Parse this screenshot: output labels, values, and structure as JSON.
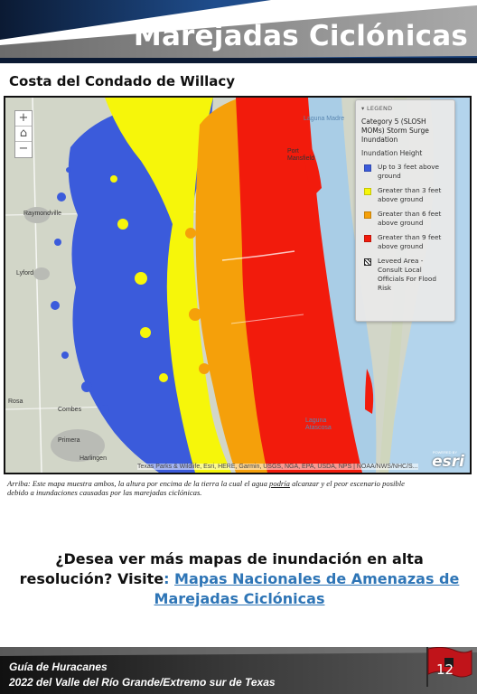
{
  "header": {
    "title": "Marejadas Ciclónicas"
  },
  "subtitle": "Costa del Condado de Willacy",
  "map": {
    "zoom_in": "+",
    "zoom_home": "⌂",
    "zoom_out": "−",
    "place_labels": [
      "Raymondville",
      "Lyford",
      "Rosa",
      "Combes",
      "Primera",
      "Harlingen",
      "Port Mansfield",
      "Laguna Madre",
      "Laguna Atascosa"
    ],
    "legend": {
      "header": "LEGEND",
      "layer_title": "Category 5 (SLOSH MOMs) Storm Surge Inundation",
      "field": "Inundation Height",
      "items": [
        {
          "label": "Up to 3 feet above ground",
          "color": "#3b5bdb"
        },
        {
          "label": "Greater than 3 feet above ground",
          "color": "#f6f60a"
        },
        {
          "label": "Greater than 6 feet above ground",
          "color": "#f5a00a"
        },
        {
          "label": "Greater than 9 feet above ground",
          "color": "#f21b0c"
        },
        {
          "label": "Leveed Area - Consult Local Officials For Flood Risk",
          "color": "hatch"
        }
      ]
    },
    "attribution": "Texas Parks & Wildlife, Esri, HERE, Garmin, USGS, NGA, EPA, USDA, NPS | NOAA/NWS/NHC/S...",
    "esri": "esri",
    "esri_powered": "POWERED BY"
  },
  "caption": {
    "before": "Arriba: Este mapa muestra ambos, la altura por encima de la tierra la cual el agua ",
    "emphasis": "podría",
    "after": " alcanzar y el peor escenario posible debido a inundaciones causadas por las marejadas ciclónicas."
  },
  "cta": {
    "question": "¿Desea ver más mapas de inundación en alta resolución? Visite",
    "colon": ": ",
    "link": "Mapas Nacionales de Amenazas de Marejadas Ciclónicas"
  },
  "footer": {
    "line1": "Guía de Huracanes",
    "line2": "2022 del Valle del Río Grande/Extremo sur de Texas",
    "page_number": "12"
  },
  "colors": {
    "banner_dark": "#0b1a33",
    "banner_blue": "#1f4d8c",
    "banner_gray": "#8a8a8a",
    "footer_red": "#c0141a",
    "link": "#2e75b6"
  }
}
